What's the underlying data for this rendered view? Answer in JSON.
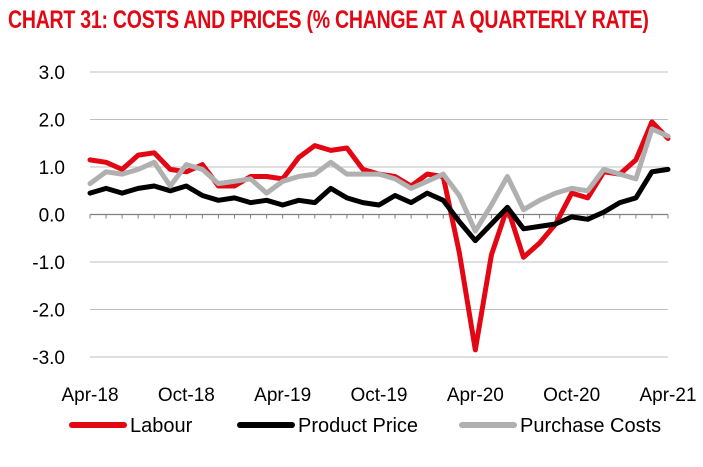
{
  "chart_data": {
    "type": "line",
    "title": "CHART 31: COSTS AND PRICES (% CHANGE AT A QUARTERLY RATE)",
    "xlabel": "",
    "ylabel": "",
    "ylim": [
      -3.0,
      3.0
    ],
    "y_ticks": [
      "3.0",
      "2.0",
      "1.0",
      "0.0",
      "-1.0",
      "-2.0",
      "-3.0"
    ],
    "x": [
      "Apr-18",
      "May-18",
      "Jun-18",
      "Jul-18",
      "Aug-18",
      "Sep-18",
      "Oct-18",
      "Nov-18",
      "Dec-18",
      "Jan-19",
      "Feb-19",
      "Mar-19",
      "Apr-19",
      "May-19",
      "Jun-19",
      "Jul-19",
      "Aug-19",
      "Sep-19",
      "Oct-19",
      "Nov-19",
      "Dec-19",
      "Jan-20",
      "Feb-20",
      "Mar-20",
      "Apr-20",
      "May-20",
      "Jun-20",
      "Jul-20",
      "Aug-20",
      "Sep-20",
      "Oct-20",
      "Nov-20",
      "Dec-20",
      "Jan-21",
      "Feb-21",
      "Mar-21",
      "Apr-21"
    ],
    "x_tick_labels": [
      "Apr-18",
      "Oct-18",
      "Apr-19",
      "Oct-19",
      "Apr-20",
      "Oct-20",
      "Apr-21"
    ],
    "grid": true,
    "legend_position": "bottom",
    "series": [
      {
        "name": "Labour",
        "color": "#e30613",
        "values": [
          1.15,
          1.1,
          0.95,
          1.25,
          1.3,
          0.95,
          0.9,
          1.05,
          0.6,
          0.6,
          0.8,
          0.8,
          0.75,
          1.2,
          1.45,
          1.35,
          1.4,
          0.95,
          0.85,
          0.8,
          0.6,
          0.85,
          0.8,
          -0.8,
          -2.85,
          -0.85,
          0.15,
          -0.9,
          -0.6,
          -0.2,
          0.45,
          0.35,
          0.9,
          0.85,
          1.15,
          1.95,
          1.6
        ]
      },
      {
        "name": "Product Price",
        "color": "#000000",
        "values": [
          0.45,
          0.55,
          0.45,
          0.55,
          0.6,
          0.5,
          0.6,
          0.4,
          0.3,
          0.35,
          0.25,
          0.3,
          0.2,
          0.3,
          0.25,
          0.55,
          0.35,
          0.25,
          0.2,
          0.4,
          0.25,
          0.45,
          0.3,
          -0.15,
          -0.55,
          -0.2,
          0.15,
          -0.3,
          -0.25,
          -0.2,
          -0.05,
          -0.1,
          0.05,
          0.25,
          0.35,
          0.9,
          0.95
        ]
      },
      {
        "name": "Purchase Costs",
        "color": "#b0b0b0",
        "values": [
          0.65,
          0.9,
          0.85,
          0.95,
          1.1,
          0.6,
          1.05,
          0.95,
          0.65,
          0.7,
          0.75,
          0.45,
          0.7,
          0.8,
          0.85,
          1.1,
          0.85,
          0.85,
          0.85,
          0.75,
          0.55,
          0.7,
          0.85,
          0.4,
          -0.35,
          0.2,
          0.8,
          0.1,
          0.3,
          0.45,
          0.55,
          0.5,
          0.95,
          0.85,
          0.75,
          1.8,
          1.65
        ]
      }
    ]
  }
}
